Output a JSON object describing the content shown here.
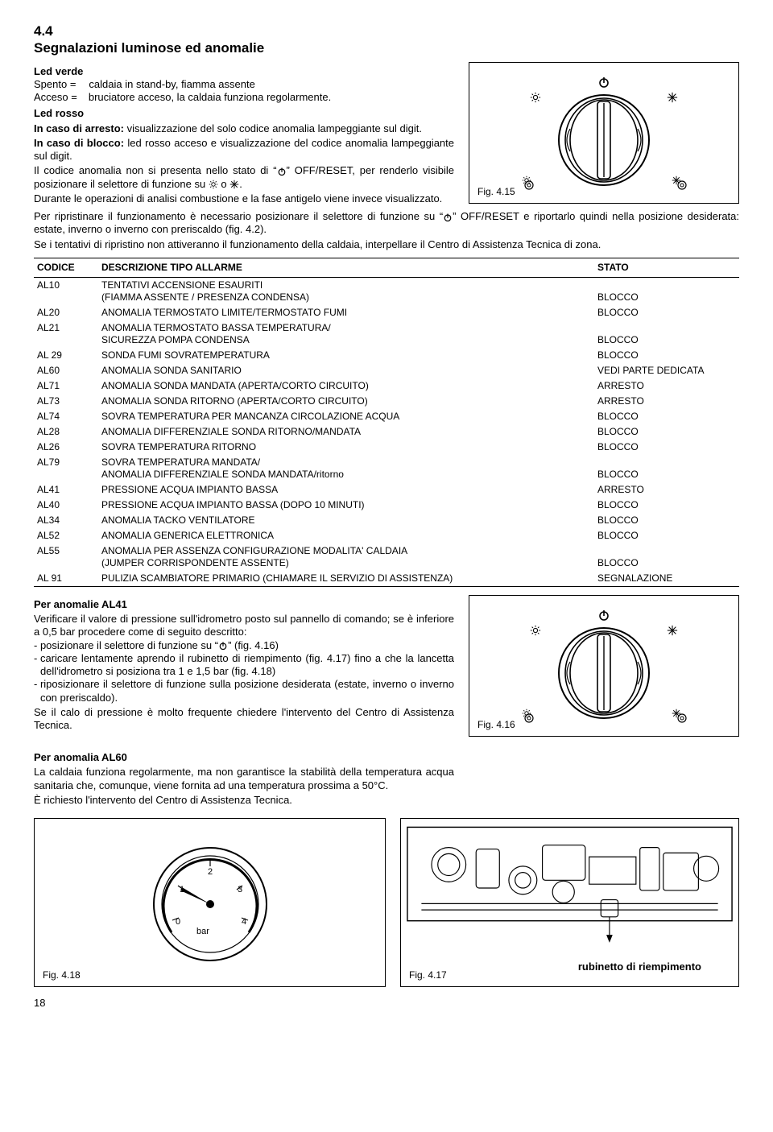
{
  "section_number": "4.4",
  "section_title": "Segnalazioni luminose ed anomalie",
  "led_verde_head": "Led verde",
  "spento_label": "Spento =",
  "spento_text": "caldaia in stand-by, fiamma assente",
  "acceso_label": "Acceso =",
  "acceso_text": "bruciatore acceso, la caldaia funziona regolarmente.",
  "led_rosso_head": "Led rosso",
  "arresto_text_bold": "In caso di arresto:",
  "arresto_text": " visualizzazione del solo codice anomalia lampeggiante sul digit.",
  "blocco_text_bold": "In caso di blocco:",
  "blocco_text": " led rosso acceso e visualizzazione del codice anomalia lampeggiante sul digit.",
  "codice_text_1": "Il codice anomalia non si presenta nello stato di “",
  "codice_text_2": "” OFF/RESET, per renderlo visibile posizionare il selettore di funzione su ",
  "codice_text_3": " o ",
  "codice_text_4": ".",
  "durante_text": "Durante le operazioni di analisi combustione e la fase antigelo viene invece visualizzato.",
  "ripristinare_1": "Per ripristinare il funzionamento è necessario posizionare il selettore di funzione su “",
  "ripristinare_2": "” OFF/RESET e riportarlo quindi nella posizione desiderata: estate, inverno o inverno con preriscaldo (fig. 4.2).",
  "tentativi_text": "Se i tentativi di ripristino non attiveranno il funzionamento della caldaia, interpellare il Centro di Assistenza Tecnica di zona.",
  "fig415": "Fig. 4.15",
  "fig416": "Fig. 4.16",
  "fig417": "Fig. 4.17",
  "fig418": "Fig. 4.18",
  "col_codice": "CODICE",
  "col_desc": "DESCRIZIONE TIPO ALLARME",
  "col_stato": "STATO",
  "rows": [
    {
      "c": "AL10",
      "d": "TENTATIVI ACCENSIONE ESAURITI\n(FIAMMA ASSENTE / PRESENZA CONDENSA)",
      "s": "BLOCCO"
    },
    {
      "c": "AL20",
      "d": "ANOMALIA TERMOSTATO LIMITE/TERMOSTATO FUMI",
      "s": "BLOCCO"
    },
    {
      "c": "AL21",
      "d": "ANOMALIA TERMOSTATO BASSA TEMPERATURA/\nSICUREZZA POMPA CONDENSA",
      "s": "BLOCCO"
    },
    {
      "c": "AL 29",
      "d": "SONDA FUMI SOVRATEMPERATURA",
      "s": "BLOCCO"
    },
    {
      "c": "AL60",
      "d": "ANOMALIA SONDA SANITARIO",
      "s": "VEDI PARTE DEDICATA"
    },
    {
      "c": "AL71",
      "d": "ANOMALIA SONDA MANDATA (APERTA/CORTO CIRCUITO)",
      "s": "ARRESTO"
    },
    {
      "c": "AL73",
      "d": "ANOMALIA SONDA RITORNO (APERTA/CORTO CIRCUITO)",
      "s": "ARRESTO"
    },
    {
      "c": "AL74",
      "d": "SOVRA TEMPERATURA PER MANCANZA CIRCOLAZIONE ACQUA",
      "s": "BLOCCO"
    },
    {
      "c": "AL28",
      "d": "ANOMALIA DIFFERENZIALE SONDA RITORNO/MANDATA",
      "s": "BLOCCO"
    },
    {
      "c": "AL26",
      "d": "SOVRA TEMPERATURA RITORNO",
      "s": "BLOCCO"
    },
    {
      "c": "AL79",
      "d": "SOVRA TEMPERATURA MANDATA/\nANOMALIA DIFFERENZIALE SONDA MANDATA/ritorno",
      "s": "BLOCCO"
    },
    {
      "c": "AL41",
      "d": "PRESSIONE ACQUA IMPIANTO BASSA",
      "s": "ARRESTO"
    },
    {
      "c": "AL40",
      "d": "PRESSIONE ACQUA IMPIANTO BASSA (DOPO 10 MINUTI)",
      "s": "BLOCCO"
    },
    {
      "c": "AL34",
      "d": "ANOMALIA TACKO VENTILATORE",
      "s": "BLOCCO"
    },
    {
      "c": "AL52",
      "d": "ANOMALIA GENERICA ELETTRONICA",
      "s": "BLOCCO"
    },
    {
      "c": "AL55",
      "d": "ANOMALIA PER ASSENZA CONFIGURAZIONE MODALITA' CALDAIA\n(JUMPER CORRISPONDENTE ASSENTE)",
      "s": "BLOCCO"
    },
    {
      "c": "AL 91",
      "d": "PULIZIA SCAMBIATORE PRIMARIO (CHIAMARE IL SERVIZIO DI ASSISTENZA)",
      "s": "SEGNALAZIONE"
    }
  ],
  "al41_head": "Per anomalie AL41",
  "al41_p1": "Verificare il valore di pressione sull'idrometro posto sul pannello di comando; se è inferiore a 0,5 bar procedere come di seguito descritto:",
  "al41_li1_a": "posizionare il selettore di funzione su “",
  "al41_li1_b": "” (fig. 4.16)",
  "al41_li2": "caricare lentamente aprendo il rubinetto di riempimento (fig. 4.17) fino a che la lancetta dell'idrometro si posiziona tra 1 e 1,5 bar (fig. 4.18)",
  "al41_li3": "riposizionare il selettore di funzione sulla posizione desiderata (estate, inverno o inverno con preriscaldo).",
  "al41_p2": "Se il calo di pressione è molto frequente chiedere l'intervento del Centro di Assistenza Tecnica.",
  "al60_head": "Per anomalia AL60",
  "al60_p1": "La caldaia funziona regolarmente, ma non garantisce la stabilità della temperatura acqua sanitaria che, comunque, viene fornita ad una temperatura prossima a 50°C.",
  "al60_p2": "È richiesto l'intervento del Centro di Assistenza Tecnica.",
  "rubinetto": "rubinetto di riempimento",
  "page": "18"
}
